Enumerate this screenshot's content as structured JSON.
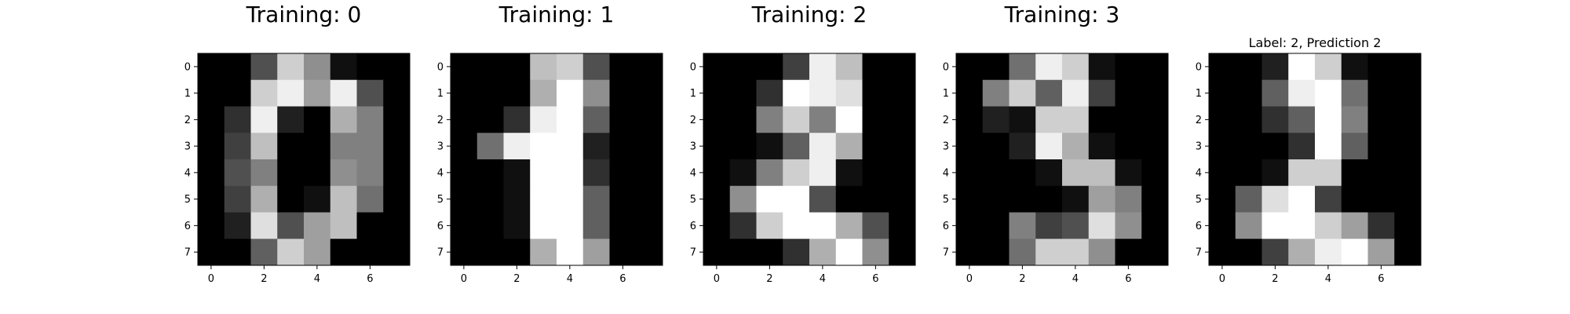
{
  "chart_data": [
    {
      "type": "heatmap",
      "title": "Training: 0",
      "xlabel": "",
      "ylabel": "",
      "colormap": "gray_r",
      "vmin": 0,
      "vmax": 16,
      "xlim": [
        -0.5,
        7.5
      ],
      "ylim": [
        7.5,
        -0.5
      ],
      "x_ticks": [
        0,
        2,
        4,
        6
      ],
      "y_ticks": [
        0,
        1,
        2,
        3,
        4,
        5,
        6,
        7
      ],
      "grid": false,
      "values": [
        [
          0,
          0,
          5,
          13,
          9,
          1,
          0,
          0
        ],
        [
          0,
          0,
          13,
          15,
          10,
          15,
          5,
          0
        ],
        [
          0,
          3,
          15,
          2,
          0,
          11,
          8,
          0
        ],
        [
          0,
          4,
          12,
          0,
          0,
          8,
          8,
          0
        ],
        [
          0,
          5,
          8,
          0,
          0,
          9,
          8,
          0
        ],
        [
          0,
          4,
          11,
          0,
          1,
          12,
          7,
          0
        ],
        [
          0,
          2,
          14,
          5,
          10,
          12,
          0,
          0
        ],
        [
          0,
          0,
          6,
          13,
          10,
          0,
          0,
          0
        ]
      ]
    },
    {
      "type": "heatmap",
      "title": "Training: 1",
      "xlabel": "",
      "ylabel": "",
      "colormap": "gray_r",
      "vmin": 0,
      "vmax": 16,
      "xlim": [
        -0.5,
        7.5
      ],
      "ylim": [
        7.5,
        -0.5
      ],
      "x_ticks": [
        0,
        2,
        4,
        6
      ],
      "y_ticks": [
        0,
        1,
        2,
        3,
        4,
        5,
        6,
        7
      ],
      "grid": false,
      "values": [
        [
          0,
          0,
          0,
          12,
          13,
          5,
          0,
          0
        ],
        [
          0,
          0,
          0,
          11,
          16,
          9,
          0,
          0
        ],
        [
          0,
          0,
          3,
          15,
          16,
          6,
          0,
          0
        ],
        [
          0,
          7,
          15,
          16,
          16,
          2,
          0,
          0
        ],
        [
          0,
          0,
          1,
          16,
          16,
          3,
          0,
          0
        ],
        [
          0,
          0,
          1,
          16,
          16,
          6,
          0,
          0
        ],
        [
          0,
          0,
          1,
          16,
          16,
          6,
          0,
          0
        ],
        [
          0,
          0,
          0,
          11,
          16,
          10,
          0,
          0
        ]
      ]
    },
    {
      "type": "heatmap",
      "title": "Training: 2",
      "xlabel": "",
      "ylabel": "",
      "colormap": "gray_r",
      "vmin": 0,
      "vmax": 16,
      "xlim": [
        -0.5,
        7.5
      ],
      "ylim": [
        7.5,
        -0.5
      ],
      "x_ticks": [
        0,
        2,
        4,
        6
      ],
      "y_ticks": [
        0,
        1,
        2,
        3,
        4,
        5,
        6,
        7
      ],
      "grid": false,
      "values": [
        [
          0,
          0,
          0,
          4,
          15,
          12,
          0,
          0
        ],
        [
          0,
          0,
          3,
          16,
          15,
          14,
          0,
          0
        ],
        [
          0,
          0,
          8,
          13,
          8,
          16,
          0,
          0
        ],
        [
          0,
          0,
          1,
          6,
          15,
          11,
          0,
          0
        ],
        [
          0,
          1,
          8,
          13,
          15,
          1,
          0,
          0
        ],
        [
          0,
          9,
          16,
          16,
          5,
          0,
          0,
          0
        ],
        [
          0,
          3,
          13,
          16,
          16,
          11,
          5,
          0
        ],
        [
          0,
          0,
          0,
          3,
          11,
          16,
          9,
          0
        ]
      ]
    },
    {
      "type": "heatmap",
      "title": "Training: 3",
      "xlabel": "",
      "ylabel": "",
      "colormap": "gray_r",
      "vmin": 0,
      "vmax": 16,
      "xlim": [
        -0.5,
        7.5
      ],
      "ylim": [
        7.5,
        -0.5
      ],
      "x_ticks": [
        0,
        2,
        4,
        6
      ],
      "y_ticks": [
        0,
        1,
        2,
        3,
        4,
        5,
        6,
        7
      ],
      "grid": false,
      "values": [
        [
          0,
          0,
          7,
          15,
          13,
          1,
          0,
          0
        ],
        [
          0,
          8,
          13,
          6,
          15,
          4,
          0,
          0
        ],
        [
          0,
          2,
          1,
          13,
          13,
          0,
          0,
          0
        ],
        [
          0,
          0,
          2,
          15,
          11,
          1,
          0,
          0
        ],
        [
          0,
          0,
          0,
          1,
          12,
          12,
          1,
          0
        ],
        [
          0,
          0,
          0,
          0,
          1,
          10,
          8,
          0
        ],
        [
          0,
          0,
          8,
          4,
          5,
          14,
          9,
          0
        ],
        [
          0,
          0,
          7,
          13,
          13,
          9,
          0,
          0
        ]
      ]
    },
    {
      "type": "heatmap",
      "title": "Label: 2, Prediction 2",
      "xlabel": "",
      "ylabel": "",
      "colormap": "gray_r",
      "vmin": 0,
      "vmax": 16,
      "xlim": [
        -0.5,
        7.5
      ],
      "ylim": [
        7.5,
        -0.5
      ],
      "x_ticks": [
        0,
        2,
        4,
        6
      ],
      "y_ticks": [
        0,
        1,
        2,
        3,
        4,
        5,
        6,
        7
      ],
      "grid": false,
      "values": [
        [
          0,
          0,
          2,
          16,
          13,
          1,
          0,
          0
        ],
        [
          0,
          0,
          6,
          15,
          16,
          7,
          0,
          0
        ],
        [
          0,
          0,
          3,
          6,
          16,
          8,
          0,
          0
        ],
        [
          0,
          0,
          0,
          3,
          16,
          6,
          0,
          0
        ],
        [
          0,
          0,
          1,
          13,
          13,
          0,
          0,
          0
        ],
        [
          0,
          6,
          14,
          16,
          4,
          0,
          0,
          0
        ],
        [
          0,
          9,
          16,
          16,
          13,
          10,
          3,
          0
        ],
        [
          0,
          0,
          4,
          11,
          15,
          16,
          10,
          0
        ]
      ]
    }
  ]
}
